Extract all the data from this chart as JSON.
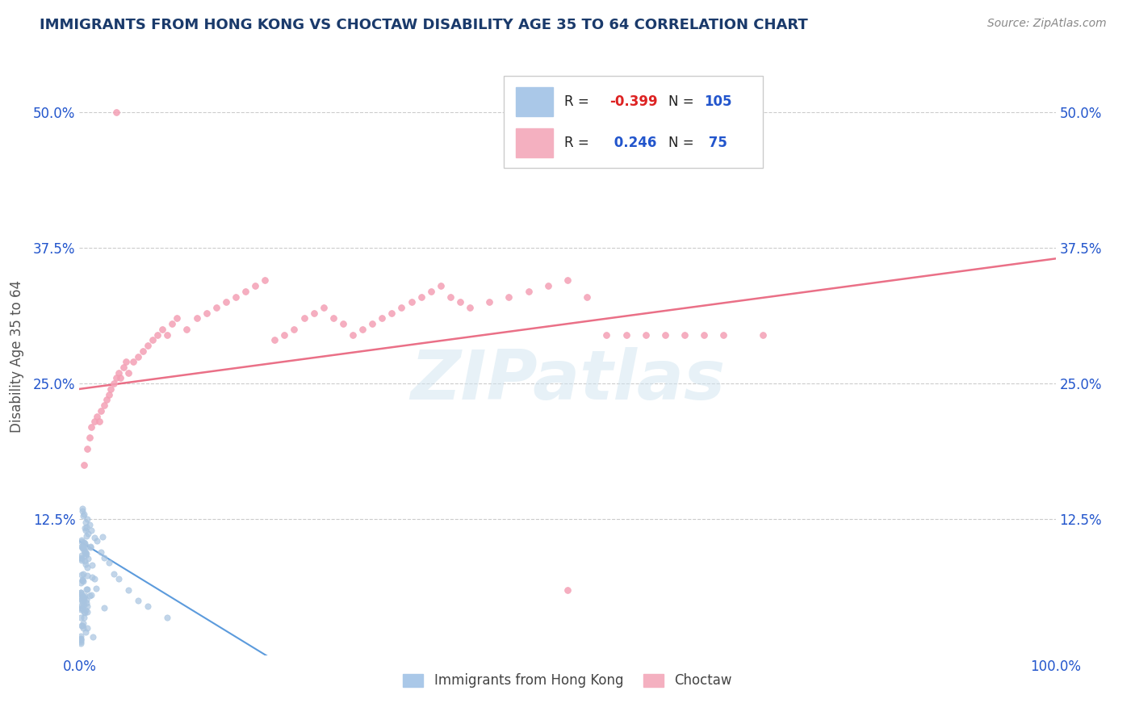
{
  "title": "IMMIGRANTS FROM HONG KONG VS CHOCTAW DISABILITY AGE 35 TO 64 CORRELATION CHART",
  "source_text": "Source: ZipAtlas.com",
  "ylabel": "Disability Age 35 to 64",
  "watermark": "ZIPatlas",
  "xlim": [
    0.0,
    1.0
  ],
  "ylim": [
    0.0,
    0.55
  ],
  "yticks": [
    0.125,
    0.25,
    0.375,
    0.5
  ],
  "ytick_labels": [
    "12.5%",
    "25.0%",
    "37.5%",
    "50.0%"
  ],
  "xtick_labels": [
    "0.0%",
    "100.0%"
  ],
  "series1_color": "#a8c4e0",
  "series2_color": "#f4a0b5",
  "trend1_color": "#4a90d9",
  "trend2_color": "#e8607a",
  "title_color": "#1a3a6b",
  "tick_color": "#2255cc",
  "background_color": "#ffffff",
  "grid_color": "#cccccc",
  "source_color": "#888888"
}
